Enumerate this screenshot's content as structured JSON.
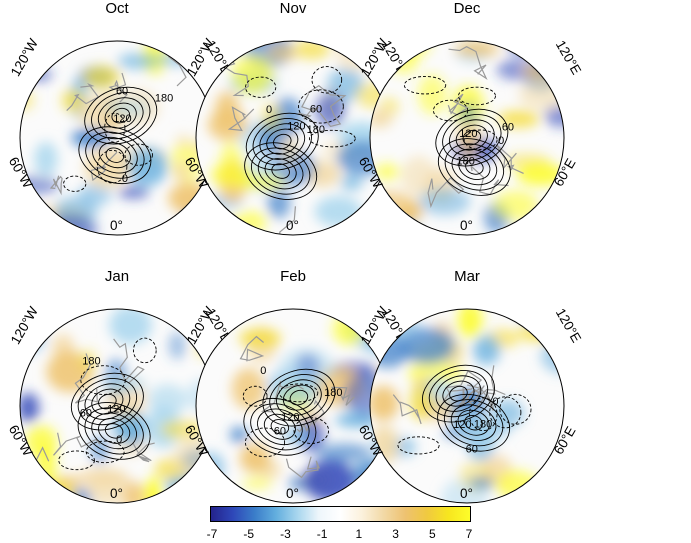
{
  "panels": [
    {
      "title": "Oct"
    },
    {
      "title": "Nov"
    },
    {
      "title": "Dec"
    },
    {
      "title": "Jan"
    },
    {
      "title": "Feb"
    },
    {
      "title": "Mar"
    }
  ],
  "axis_labels": {
    "w120": "120°W",
    "e120": "120°E",
    "w60": "60°W",
    "e60": "60°E",
    "zero": "0°"
  },
  "contour_labels": [
    "60",
    "120",
    "180",
    "0",
    "-60"
  ],
  "colorbar": {
    "ticks": [
      "-7",
      "-5",
      "-3",
      "-1",
      "1",
      "3",
      "5",
      "7"
    ],
    "colors": [
      "#24238c",
      "#2e47b8",
      "#3a7cc9",
      "#62aede",
      "#a8d6ee",
      "#eef6fb",
      "#ffffff",
      "#fbf1dc",
      "#f2d9a6",
      "#eec271",
      "#f0c940",
      "#f7e61f",
      "#fdfd2a"
    ]
  }
}
